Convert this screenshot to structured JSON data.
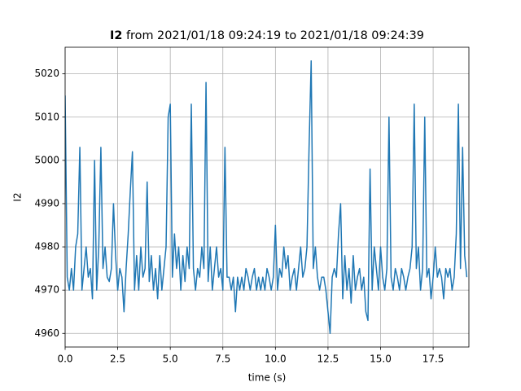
{
  "chart_data": {
    "type": "line",
    "title": {
      "signal": "I2",
      "range": "from 2021/01/18 09:24:19 to 2021/01/18 09:24:39"
    },
    "x_label": "time (s)",
    "y_label": "I2",
    "x": [
      0,
      0.1,
      0.2,
      0.3,
      0.4,
      0.5,
      0.6,
      0.7,
      0.8,
      0.9,
      1,
      1.1,
      1.2,
      1.3,
      1.4,
      1.5,
      1.6,
      1.7,
      1.8,
      1.9,
      2,
      2.1,
      2.2,
      2.3,
      2.4,
      2.5,
      2.6,
      2.7,
      2.8,
      2.9,
      3,
      3.1,
      3.2,
      3.3,
      3.4,
      3.5,
      3.6,
      3.7,
      3.8,
      3.9,
      4,
      4.1,
      4.2,
      4.3,
      4.4,
      4.5,
      4.6,
      4.7,
      4.8,
      4.9,
      5,
      5.1,
      5.2,
      5.3,
      5.4,
      5.5,
      5.6,
      5.7,
      5.8,
      5.9,
      6,
      6.1,
      6.2,
      6.3,
      6.4,
      6.5,
      6.6,
      6.7,
      6.8,
      6.9,
      7,
      7.1,
      7.2,
      7.3,
      7.4,
      7.5,
      7.6,
      7.7,
      7.8,
      7.9,
      8,
      8.1,
      8.2,
      8.3,
      8.4,
      8.5,
      8.6,
      8.7,
      8.8,
      8.9,
      9,
      9.1,
      9.2,
      9.3,
      9.4,
      9.5,
      9.6,
      9.7,
      9.8,
      9.9,
      10,
      10.1,
      10.2,
      10.3,
      10.4,
      10.5,
      10.6,
      10.7,
      10.8,
      10.9,
      11,
      11.1,
      11.2,
      11.3,
      11.4,
      11.5,
      11.6,
      11.7,
      11.8,
      11.9,
      12,
      12.1,
      12.2,
      12.3,
      12.4,
      12.5,
      12.6,
      12.7,
      12.8,
      12.9,
      13,
      13.1,
      13.2,
      13.3,
      13.4,
      13.5,
      13.6,
      13.7,
      13.8,
      13.9,
      14,
      14.1,
      14.2,
      14.3,
      14.4,
      14.5,
      14.6,
      14.7,
      14.8,
      14.9,
      15,
      15.1,
      15.2,
      15.3,
      15.4,
      15.5,
      15.6,
      15.7,
      15.8,
      15.9,
      16,
      16.1,
      16.2,
      16.3,
      16.4,
      16.5,
      16.6,
      16.7,
      16.8,
      16.9,
      17,
      17.1,
      17.2,
      17.3,
      17.4,
      17.5,
      17.6,
      17.7,
      17.8,
      17.9,
      18,
      18.1,
      18.2,
      18.3,
      18.4,
      18.5,
      18.6,
      18.7,
      18.8,
      18.9,
      19,
      19.1
    ],
    "series": [
      {
        "color": "#1f77b4",
        "values": [
          5015,
          4973,
          4970,
          4975,
          4970,
          4980,
          4983,
          5003,
          4970,
          4975,
          4980,
          4973,
          4975,
          4968,
          5000,
          4970,
          4980,
          5003,
          4975,
          4980,
          4973,
          4972,
          4975,
          4990,
          4978,
          4970,
          4975,
          4973,
          4965,
          4975,
          4983,
          4993,
          5002,
          4970,
          4978,
          4970,
          4980,
          4973,
          4975,
          4995,
          4972,
          4978,
          4970,
          4975,
          4968,
          4978,
          4970,
          4975,
          4980,
          5010,
          5013,
          4973,
          4983,
          4975,
          4980,
          4970,
          4978,
          4972,
          4980,
          4975,
          5013,
          4975,
          4970,
          4975,
          4973,
          4980,
          4975,
          5018,
          4972,
          4980,
          4970,
          4975,
          4980,
          4973,
          4975,
          4970,
          5003,
          4973,
          4973,
          4970,
          4973,
          4965,
          4973,
          4970,
          4973,
          4970,
          4975,
          4973,
          4970,
          4973,
          4975,
          4970,
          4973,
          4970,
          4973,
          4970,
          4975,
          4973,
          4970,
          4973,
          4985,
          4970,
          4975,
          4973,
          4980,
          4975,
          4978,
          4970,
          4973,
          4975,
          4970,
          4975,
          4980,
          4973,
          4975,
          4980,
          5003,
          5023,
          4975,
          4980,
          4973,
          4970,
          4973,
          4973,
          4970,
          4965,
          4960,
          4973,
          4975,
          4973,
          4983,
          4990,
          4968,
          4978,
          4970,
          4975,
          4967,
          4978,
          4970,
          4973,
          4975,
          4970,
          4973,
          4965,
          4963,
          4998,
          4970,
          4980,
          4975,
          4970,
          4980,
          4973,
          4970,
          4975,
          5010,
          4973,
          4970,
          4975,
          4973,
          4970,
          4975,
          4973,
          4970,
          4973,
          4975,
          4980,
          5013,
          4975,
          4980,
          4970,
          4975,
          5010,
          4973,
          4975,
          4968,
          4973,
          4980,
          4973,
          4975,
          4973,
          4968,
          4975,
          4973,
          4975,
          4970,
          4973,
          4983,
          5013,
          4975,
          5003,
          4978,
          4973
        ]
      }
    ],
    "xlim": [
      0,
      19.2
    ],
    "xticks": [
      {
        "value": 0,
        "label": "0.0"
      },
      2.5,
      {
        "value": 5,
        "label": "5.0"
      },
      7.5,
      {
        "value": 10,
        "label": "10.0"
      },
      12.5,
      {
        "value": 15,
        "label": "15.0"
      },
      17.5
    ],
    "ylim": [
      4956.85,
      5026.15
    ],
    "yticks": [
      4960,
      4970,
      4980,
      4990,
      5000,
      5010,
      5020
    ],
    "grid": true
  }
}
